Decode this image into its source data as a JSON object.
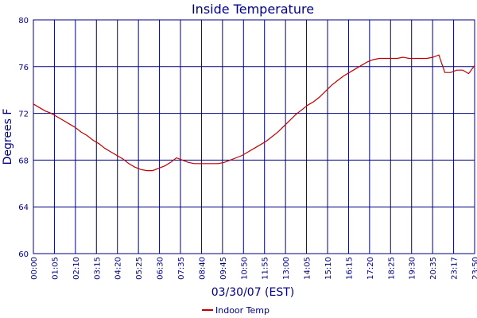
{
  "chart_data": {
    "type": "line",
    "title": "Inside Temperature",
    "xlabel": "03/30/07 (EST)",
    "ylabel": "Degrees F",
    "x_ticks": [
      "00:00",
      "01:05",
      "02:10",
      "03:15",
      "04:20",
      "05:25",
      "06:30",
      "07:35",
      "08:40",
      "09:45",
      "10:50",
      "11:55",
      "13:00",
      "14:05",
      "15:10",
      "16:15",
      "17:20",
      "18:25",
      "19:30",
      "20:35",
      "23:17",
      "23:50"
    ],
    "y_ticks": [
      60,
      64,
      68,
      72,
      76,
      80
    ],
    "ylim": [
      60,
      80
    ],
    "grid": true,
    "legend_position": "bottom",
    "series": [
      {
        "name": "Indoor Temp",
        "color": "#c00000",
        "values": [
          72.8,
          72.5,
          72.2,
          72.0,
          71.7,
          71.4,
          71.1,
          70.8,
          70.4,
          70.1,
          69.7,
          69.4,
          69.0,
          68.7,
          68.4,
          68.1,
          67.7,
          67.4,
          67.2,
          67.1,
          67.1,
          67.3,
          67.5,
          67.8,
          68.2,
          68.0,
          67.8,
          67.7,
          67.7,
          67.7,
          67.7,
          67.7,
          67.8,
          68.0,
          68.2,
          68.4,
          68.7,
          69.0,
          69.3,
          69.6,
          70.0,
          70.4,
          70.9,
          71.4,
          71.9,
          72.3,
          72.7,
          73.0,
          73.4,
          73.9,
          74.4,
          74.8,
          75.2,
          75.5,
          75.8,
          76.1,
          76.4,
          76.6,
          76.7,
          76.7,
          76.7,
          76.7,
          76.8,
          76.7,
          76.7,
          76.7,
          76.7,
          76.8,
          77.0,
          75.5,
          75.5,
          75.7,
          75.7,
          75.4,
          76.1
        ]
      }
    ]
  }
}
